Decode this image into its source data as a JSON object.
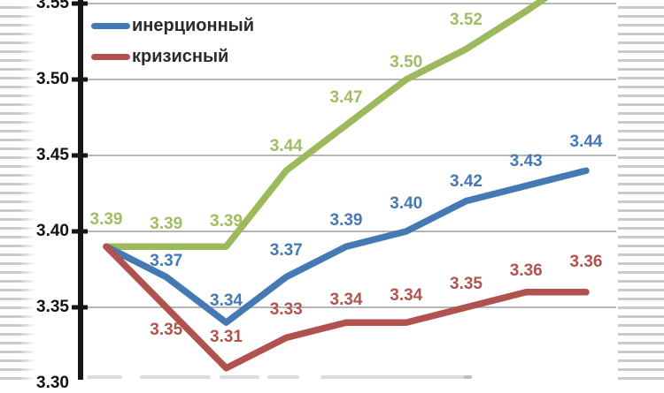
{
  "page": {
    "background_color": "#ffffff",
    "stripe_color": "#c7c9ca"
  },
  "chart_data": {
    "type": "line",
    "title": "",
    "grid": true,
    "y_axis": {
      "visible_range": [
        3.3,
        3.55
      ],
      "tick_step": 0.05,
      "tick_labels": [
        "3.55",
        "3.50",
        "3.45",
        "3.40",
        "3.35",
        "3.30"
      ],
      "tick_values": [
        3.55,
        3.5,
        3.45,
        3.4,
        3.35,
        3.3
      ]
    },
    "x_axis": {
      "num_points": 9,
      "tick_labels": []
    },
    "legend": {
      "position": "top-left",
      "items": [
        {
          "label": "инерционный",
          "color": "#4579b4"
        },
        {
          "label": "кризисный",
          "color": "#b25250"
        }
      ]
    },
    "series": [
      {
        "id": "green-scenario",
        "color": "#9cb95c",
        "label_color": "#a0bd63",
        "values": [
          3.39,
          3.39,
          3.39,
          3.44,
          3.47,
          3.5,
          3.52,
          null,
          null
        ],
        "point_labels": [
          "3.39",
          "3.39",
          "3.39",
          "3.44",
          "3.47",
          "3.50",
          "3.52",
          "",
          ""
        ]
      },
      {
        "id": "inertial-scenario",
        "legend_label": "инерционный",
        "color": "#4579b4",
        "label_color": "#4579b4",
        "values": [
          3.39,
          3.37,
          3.34,
          3.37,
          3.39,
          3.4,
          3.42,
          3.43,
          3.44
        ],
        "point_labels": [
          "",
          "3.37",
          "3.34",
          "3.37",
          "3.39",
          "3.40",
          "3.42",
          "3.43",
          "3.44"
        ]
      },
      {
        "id": "crisis-scenario",
        "legend_label": "кризисный",
        "color": "#b25250",
        "label_color": "#b1534f",
        "values": [
          3.39,
          3.35,
          3.31,
          3.33,
          3.34,
          3.34,
          3.35,
          3.36,
          3.36
        ],
        "point_labels": [
          "",
          "3.35",
          "3.31",
          "3.33",
          "3.34",
          "3.34",
          "3.35",
          "3.36",
          "3.36"
        ]
      }
    ]
  }
}
